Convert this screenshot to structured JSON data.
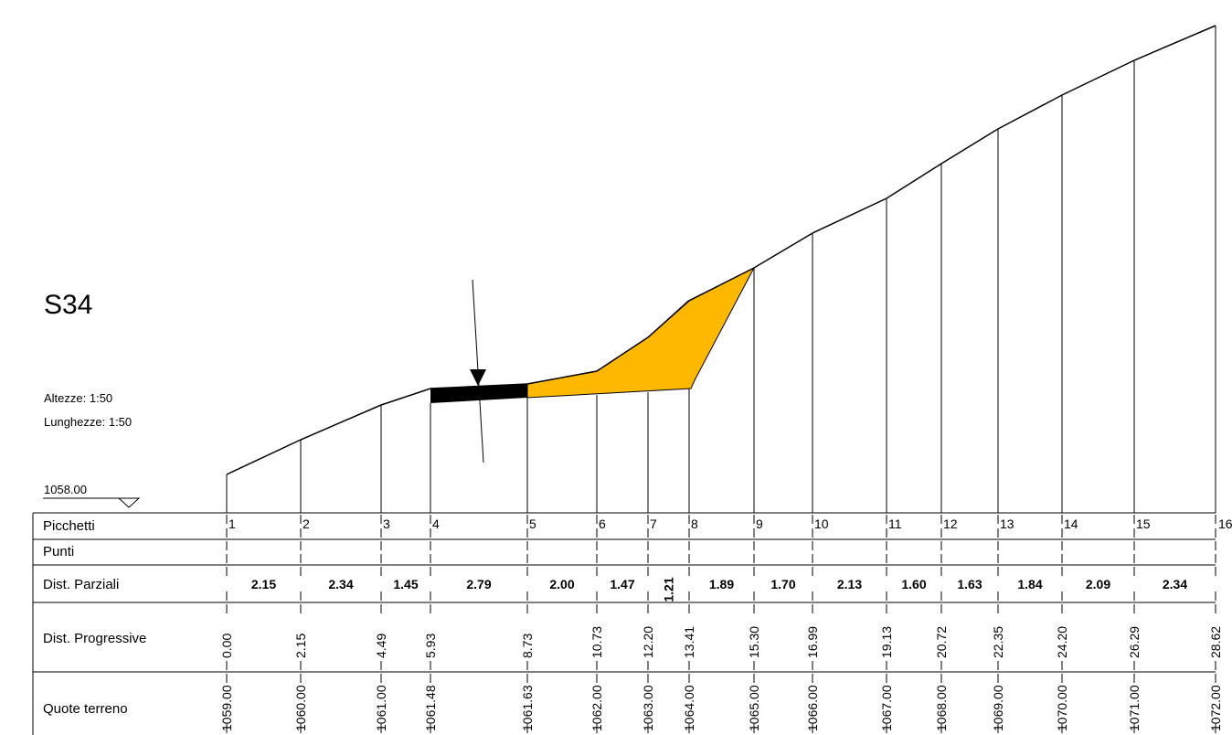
{
  "section": {
    "title": "S34",
    "scale_heights": "Altezze: 1:50",
    "scale_lengths": "Lunghezze: 1:50",
    "datum": "1058.00"
  },
  "table": {
    "rows": [
      "Picchetti",
      "Punti",
      "Dist. Parziali",
      "Dist. Progressive",
      "Quote terreno"
    ]
  },
  "stations": [
    {
      "id": "1",
      "prog": "0.00",
      "quota": "1059.00"
    },
    {
      "id": "2",
      "prog": "2.15",
      "quota": "1060.00"
    },
    {
      "id": "3",
      "prog": "4.49",
      "quota": "1061.00"
    },
    {
      "id": "4",
      "prog": "5.93",
      "quota": "1061.48"
    },
    {
      "id": "5",
      "prog": "8.73",
      "quota": "1061.63"
    },
    {
      "id": "6",
      "prog": "10.73",
      "quota": "1062.00"
    },
    {
      "id": "7",
      "prog": "12.20",
      "quota": "1063.00"
    },
    {
      "id": "8",
      "prog": "13.41",
      "quota": "1064.00"
    },
    {
      "id": "9",
      "prog": "15.30",
      "quota": "1065.00"
    },
    {
      "id": "10",
      "prog": "16.99",
      "quota": "1066.00"
    },
    {
      "id": "11",
      "prog": "19.13",
      "quota": "1067.00"
    },
    {
      "id": "12",
      "prog": "20.72",
      "quota": "1068.00"
    },
    {
      "id": "13",
      "prog": "22.35",
      "quota": "1069.00"
    },
    {
      "id": "14",
      "prog": "24.20",
      "quota": "1070.00"
    },
    {
      "id": "15",
      "prog": "26.29",
      "quota": "1071.00"
    },
    {
      "id": "16",
      "prog": "28.62",
      "quota": "1072.00"
    }
  ],
  "partials": [
    "2.15",
    "2.34",
    "1.45",
    "2.79",
    "2.00",
    "1.47",
    "1.21",
    "1.89",
    "1.70",
    "2.13",
    "1.60",
    "1.63",
    "1.84",
    "2.09",
    "2.34"
  ],
  "colors": {
    "fill": "#ffb800",
    "road": "#000000",
    "line": "#000000"
  }
}
